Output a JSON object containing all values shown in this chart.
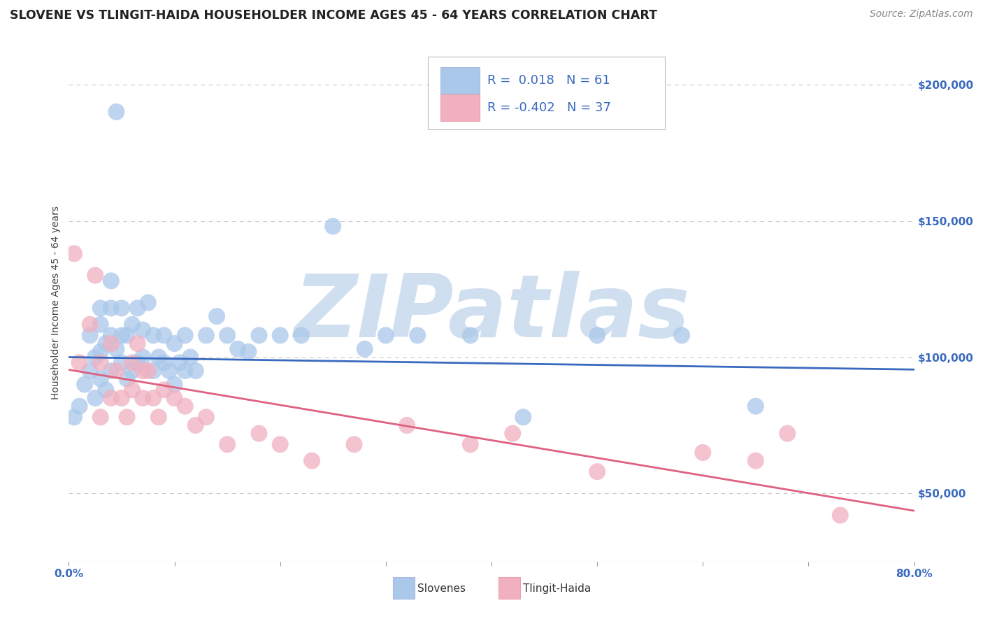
{
  "title": "SLOVENE VS TLINGIT-HAIDA HOUSEHOLDER INCOME AGES 45 - 64 YEARS CORRELATION CHART",
  "source": "Source: ZipAtlas.com",
  "ylabel": "Householder Income Ages 45 - 64 years",
  "y_tick_labels": [
    "$50,000",
    "$100,000",
    "$150,000",
    "$200,000"
  ],
  "y_tick_values": [
    50000,
    100000,
    150000,
    200000
  ],
  "y_min": 25000,
  "y_max": 215000,
  "x_min": 0.0,
  "x_max": 0.8,
  "slovene_color": "#aac8ea",
  "tlingit_color": "#f0b0c0",
  "slovene_line_color": "#3a6abf",
  "tlingit_line_color": "#e06080",
  "r_slovene": 0.018,
  "n_slovene": 61,
  "r_tlingit": -0.402,
  "n_tlingit": 37,
  "legend_label_slovene": "Slovenes",
  "legend_label_tlingit": "Tlingit-Haida",
  "slovene_x": [
    0.005,
    0.01,
    0.015,
    0.02,
    0.02,
    0.025,
    0.025,
    0.03,
    0.03,
    0.03,
    0.03,
    0.035,
    0.035,
    0.04,
    0.04,
    0.04,
    0.04,
    0.045,
    0.045,
    0.05,
    0.05,
    0.05,
    0.055,
    0.055,
    0.06,
    0.06,
    0.065,
    0.065,
    0.07,
    0.07,
    0.075,
    0.08,
    0.08,
    0.085,
    0.09,
    0.09,
    0.095,
    0.1,
    0.1,
    0.105,
    0.11,
    0.11,
    0.115,
    0.12,
    0.13,
    0.14,
    0.15,
    0.16,
    0.17,
    0.18,
    0.2,
    0.22,
    0.25,
    0.28,
    0.3,
    0.33,
    0.38,
    0.43,
    0.5,
    0.58,
    0.65
  ],
  "slovene_y": [
    78000,
    82000,
    90000,
    95000,
    108000,
    85000,
    100000,
    92000,
    102000,
    112000,
    118000,
    88000,
    105000,
    95000,
    108000,
    118000,
    128000,
    190000,
    103000,
    98000,
    108000,
    118000,
    92000,
    108000,
    95000,
    112000,
    98000,
    118000,
    100000,
    110000,
    120000,
    95000,
    108000,
    100000,
    98000,
    108000,
    95000,
    90000,
    105000,
    98000,
    95000,
    108000,
    100000,
    95000,
    108000,
    115000,
    108000,
    103000,
    102000,
    108000,
    108000,
    108000,
    148000,
    103000,
    108000,
    108000,
    108000,
    78000,
    108000,
    108000,
    82000
  ],
  "tlingit_x": [
    0.005,
    0.01,
    0.02,
    0.025,
    0.03,
    0.03,
    0.04,
    0.04,
    0.045,
    0.05,
    0.055,
    0.06,
    0.06,
    0.065,
    0.07,
    0.07,
    0.075,
    0.08,
    0.085,
    0.09,
    0.1,
    0.11,
    0.12,
    0.13,
    0.15,
    0.18,
    0.2,
    0.23,
    0.27,
    0.32,
    0.38,
    0.42,
    0.5,
    0.6,
    0.65,
    0.68,
    0.73
  ],
  "tlingit_y": [
    138000,
    98000,
    112000,
    130000,
    98000,
    78000,
    105000,
    85000,
    95000,
    85000,
    78000,
    98000,
    88000,
    105000,
    95000,
    85000,
    95000,
    85000,
    78000,
    88000,
    85000,
    82000,
    75000,
    78000,
    68000,
    72000,
    68000,
    62000,
    68000,
    75000,
    68000,
    72000,
    58000,
    65000,
    62000,
    72000,
    42000
  ],
  "background_color": "#ffffff",
  "grid_color": "#c8c8c8",
  "watermark": "ZIPatlas",
  "watermark_color": "#d0dff0",
  "title_fontsize": 12.5,
  "axis_label_fontsize": 10,
  "tick_fontsize": 11,
  "legend_fontsize": 13,
  "source_fontsize": 10
}
